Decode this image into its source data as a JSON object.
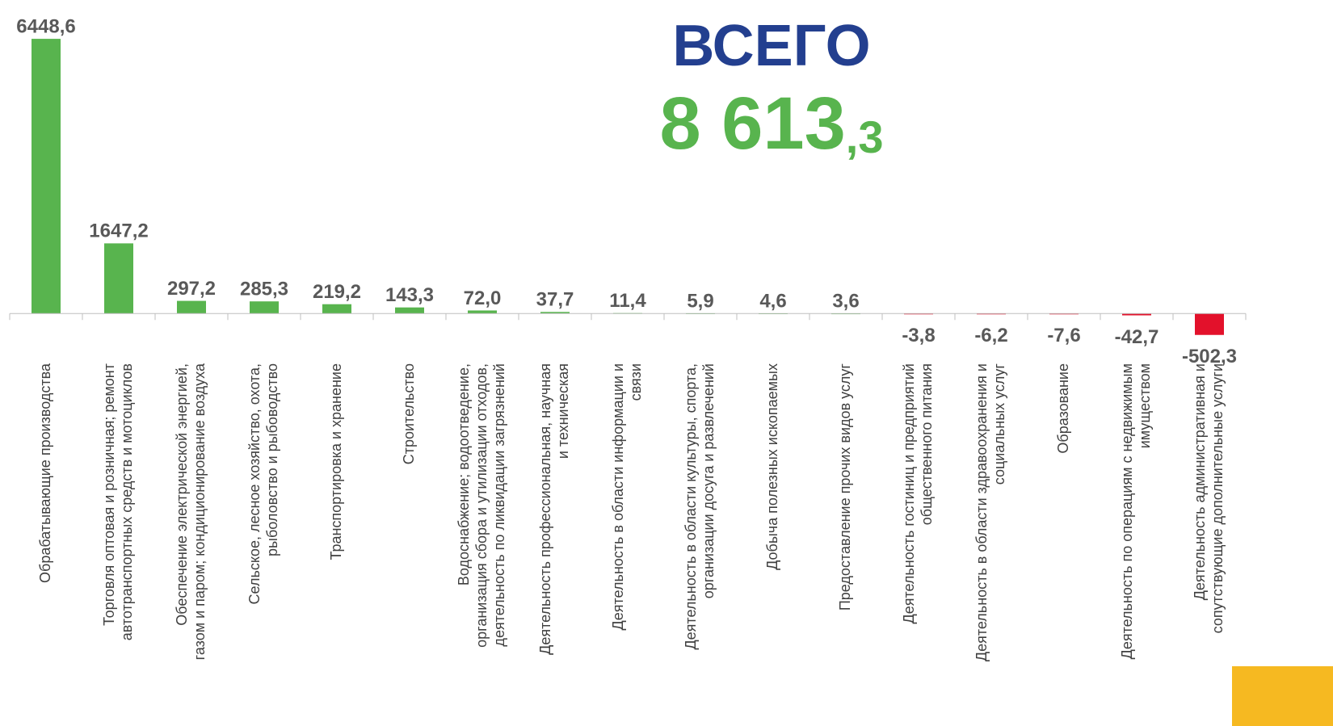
{
  "chart_data": {
    "type": "bar",
    "annotations": [
      "ВСЕГО",
      "8 613,3"
    ],
    "categories": [
      "Обрабатывающие производства",
      "Торговля оптовая и розничная; ремонт автотранспортных средств и мотоциклов",
      "Обеспечение электрической энергией, газом и паром; кондиционирование воздуха",
      "Сельское, лесное хозяйство, охота, рыболовство и рыбоводство",
      "Транспортировка и хранение",
      "Строительство",
      "Водоснабжение; водоотведение, организация сбора и утилизации отходов, деятельность по ликвидации загрязнений",
      "Деятельность профессиональная, научная и техническая",
      "Деятельность в области информации и связи",
      "Деятельность в области культуры, спорта, организации досуга и развлечений",
      "Добыча полезных ископаемых",
      "Предоставление прочих видов услуг",
      "Деятельность гостиниц и предприятий общественного питания",
      "Деятельность в области здравоохранения и социальных услуг",
      "Образование",
      "Деятельность по операциям с недвижимым имуществом",
      "Деятельность административная и сопутствующие дополнительные услуги"
    ],
    "values": [
      6448.6,
      1647.2,
      297.2,
      285.3,
      219.2,
      143.3,
      72.0,
      37.7,
      11.4,
      5.9,
      4.6,
      3.6,
      -3.8,
      -6.2,
      -7.6,
      -42.7,
      -502.3
    ],
    "value_labels": [
      "6448,6",
      "1647,2",
      "297,2",
      "285,3",
      "219,2",
      "143,3",
      "72,0",
      "37,7",
      "11,4",
      "5,9",
      "4,6",
      "3,6",
      "-3,8",
      "-6,2",
      "-7,6",
      "-42,7",
      "-502,3"
    ],
    "positive_color": "#58b44e",
    "negative_color": "#e3112b",
    "ylim": [
      -1000,
      7000
    ]
  }
}
